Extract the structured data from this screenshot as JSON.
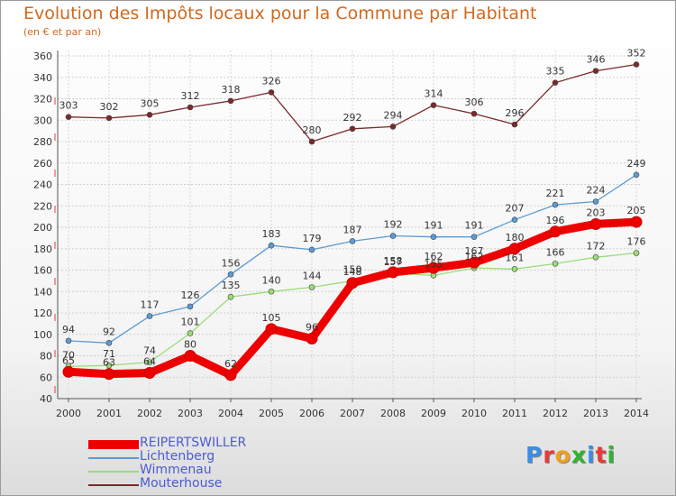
{
  "header": {
    "title": "Evolution des Impôts locaux pour la Commune par Habitant",
    "subtitle": "(en € et par an)"
  },
  "logo": {
    "text": "Proxiti",
    "colors": [
      "#3a8ee6",
      "#e83a3a",
      "#f0a020",
      "#2fb52f",
      "#3a8ee6",
      "#e83a3a",
      "#2fb52f"
    ]
  },
  "chart_data": {
    "type": "line",
    "title": "Evolution des Impôts locaux pour la Commune par Habitant",
    "subtitle": "(en € et par an)",
    "x": [
      2000,
      2001,
      2002,
      2003,
      2004,
      2005,
      2006,
      2007,
      2008,
      2009,
      2010,
      2011,
      2012,
      2013,
      2014
    ],
    "xlabel": "",
    "ylabel": "",
    "ylim": [
      40,
      360
    ],
    "yticks": [
      40,
      60,
      80,
      100,
      120,
      140,
      160,
      180,
      200,
      220,
      240,
      260,
      280,
      300,
      320,
      340,
      360
    ],
    "grid": true,
    "legend": "bottom-left",
    "series": [
      {
        "name": "Mouterhouse",
        "color": "#7a2a2a",
        "values": [
          303,
          302,
          305,
          312,
          318,
          326,
          280,
          292,
          294,
          314,
          306,
          296,
          335,
          346,
          352
        ]
      },
      {
        "name": "Lichtenberg",
        "color": "#5b9bd5",
        "values": [
          94,
          92,
          117,
          126,
          156,
          183,
          179,
          187,
          192,
          191,
          191,
          207,
          221,
          224,
          249
        ]
      },
      {
        "name": "Wimmenau",
        "color": "#99dd77",
        "values": [
          70,
          71,
          74,
          101,
          135,
          140,
          144,
          150,
          157,
          155,
          162,
          161,
          166,
          172,
          176
        ]
      },
      {
        "name": "REIPERTSWILLER",
        "color": "#ee0000",
        "values": [
          65,
          63,
          64,
          80,
          62,
          105,
          96,
          148,
          158,
          162,
          167,
          180,
          196,
          203,
          205
        ]
      }
    ],
    "legend_order": [
      "REIPERTSWILLER",
      "Lichtenberg",
      "Wimmenau",
      "Mouterhouse"
    ]
  }
}
